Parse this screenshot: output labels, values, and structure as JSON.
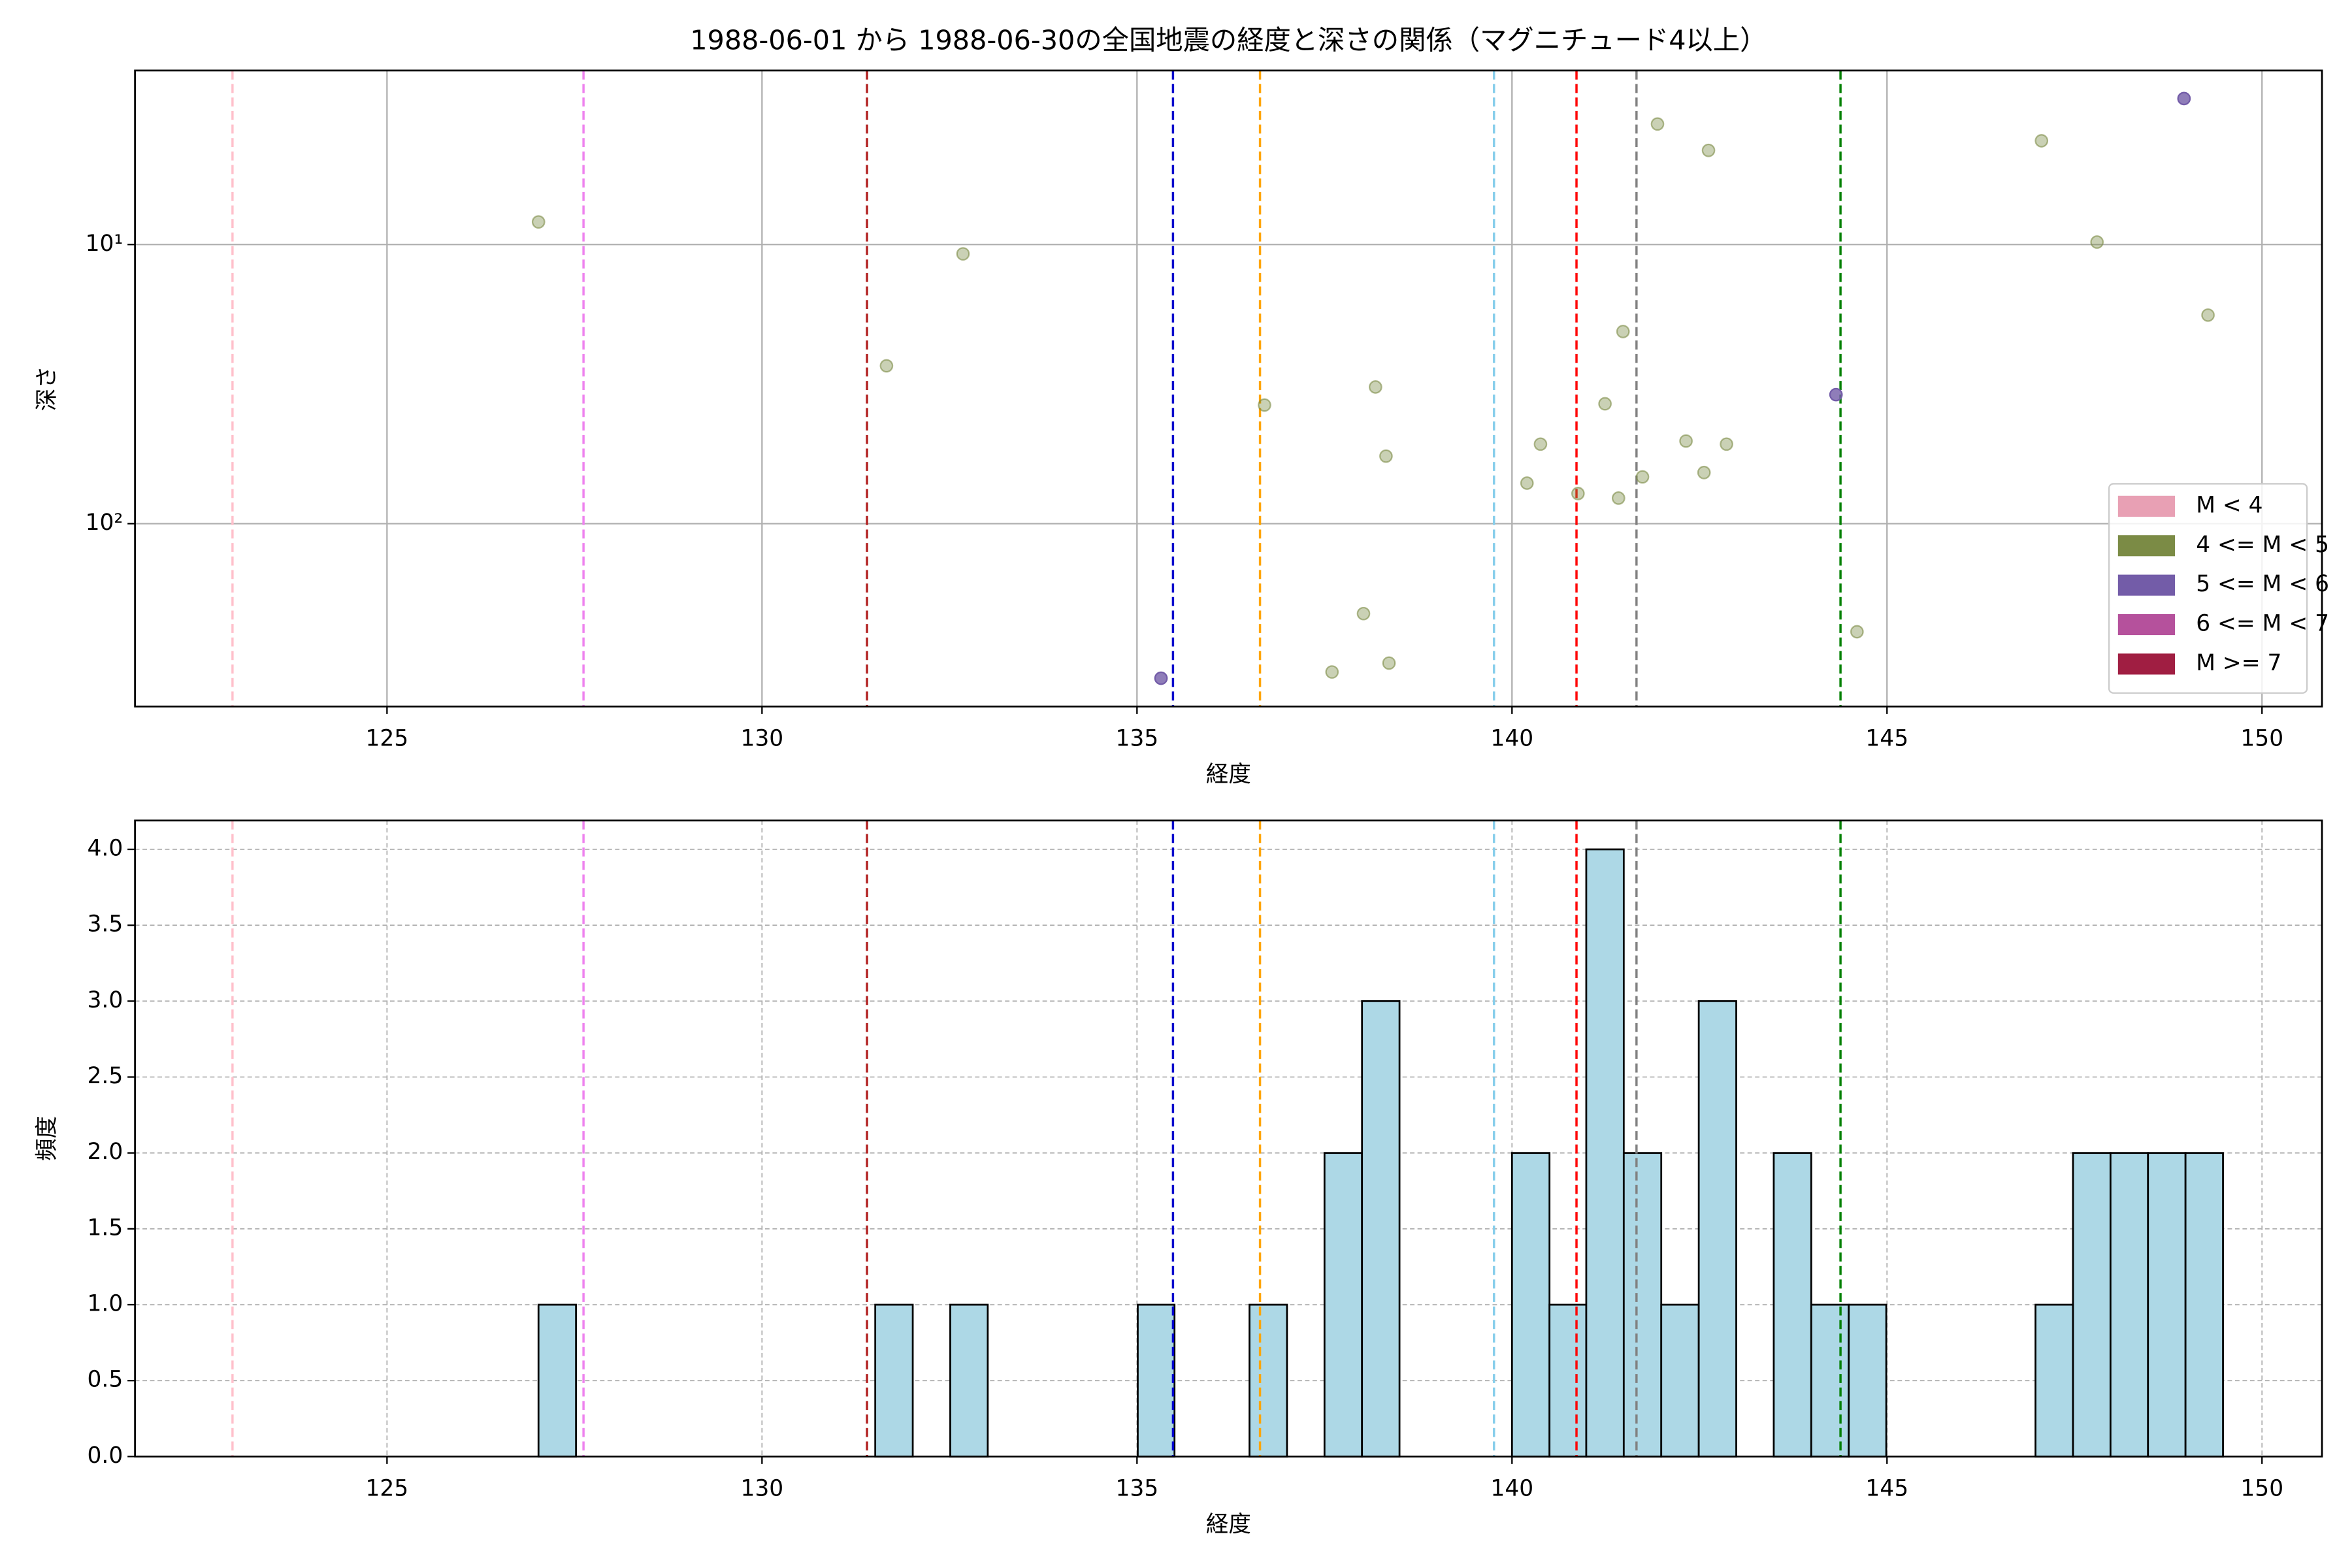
{
  "chart_data": [
    {
      "type": "scatter",
      "title": "1988-06-01 から 1988-06-30の全国地震の経度と深さの関係（マグニチュード4以上）",
      "xlabel": "経度",
      "ylabel": "深さ",
      "xlim": [
        121.64,
        150.8
      ],
      "xticks": [
        125,
        130,
        135,
        140,
        145,
        150
      ],
      "yscale": "log",
      "ylim": [
        452,
        2.38
      ],
      "yticks": [
        {
          "value": 10,
          "label": "10¹"
        },
        {
          "value": 100,
          "label": "10²"
        }
      ],
      "grid": true,
      "legend": "lower right",
      "series": [
        {
          "name": "M < 4",
          "color": "#e8a0b4",
          "alpha": 0.8,
          "x": [],
          "values": []
        },
        {
          "name": "4 <= M < 5",
          "color": "#7b8b45",
          "alpha": 0.4,
          "x": [
            127.02,
            132.68,
            131.66,
            136.7,
            138.18,
            138.32,
            138.02,
            137.6,
            138.36,
            140.2,
            140.38,
            140.88,
            141.24,
            141.48,
            141.42,
            141.74,
            141.94,
            142.32,
            142.56,
            142.62,
            142.86,
            144.6,
            147.06,
            147.8,
            149.28
          ],
          "values": [
            8.3,
            10.8,
            27.2,
            37.6,
            32.4,
            57.3,
            210,
            340,
            316,
            71.6,
            51.9,
            78,
            37.2,
            20.5,
            81,
            68,
            3.7,
            50.6,
            65.6,
            4.6,
            51.9,
            244,
            4.25,
            9.8,
            17.9
          ]
        },
        {
          "name": "5 <= M < 6",
          "color": "#735ca8",
          "alpha": 0.8,
          "x": [
            135.32,
            144.32,
            148.96
          ],
          "values": [
            358,
            34.5,
            3.0
          ]
        },
        {
          "name": "6 <= M < 7",
          "color": "#b5519c",
          "alpha": 0.8,
          "x": [],
          "values": []
        },
        {
          "name": "M >= 7",
          "color": "#a01e42",
          "alpha": 0.8,
          "x": [],
          "values": []
        }
      ],
      "vlines": [
        {
          "x": 122.94,
          "color": "#ffc0cb"
        },
        {
          "x": 127.62,
          "color": "#ee82ee"
        },
        {
          "x": 131.4,
          "color": "#b22222"
        },
        {
          "x": 135.48,
          "color": "#0000cd"
        },
        {
          "x": 136.64,
          "color": "#ffa500"
        },
        {
          "x": 139.76,
          "color": "#87ceeb"
        },
        {
          "x": 140.86,
          "color": "#ff0000"
        },
        {
          "x": 141.66,
          "color": "#808080"
        },
        {
          "x": 144.38,
          "color": "#008000"
        }
      ]
    },
    {
      "type": "histogram",
      "xlabel": "経度",
      "ylabel": "頻度",
      "xlim": [
        121.64,
        150.8
      ],
      "xticks": [
        125,
        130,
        135,
        140,
        145,
        150
      ],
      "ylim": [
        0,
        4.19
      ],
      "yticks": [
        {
          "value": 0,
          "label": "0.0"
        },
        {
          "value": 0.5,
          "label": "0.5"
        },
        {
          "value": 1,
          "label": "1.0"
        },
        {
          "value": 1.5,
          "label": "1.5"
        },
        {
          "value": 2,
          "label": "2.0"
        },
        {
          "value": 2.5,
          "label": "2.5"
        },
        {
          "value": 3,
          "label": "3.0"
        },
        {
          "value": 3.5,
          "label": "3.5"
        },
        {
          "value": 4,
          "label": "4.0"
        }
      ],
      "grid": true,
      "color": "#add8e6",
      "edgecolor": "#000000",
      "bins": [
        127.02,
        127.52,
        128.02,
        128.52,
        129.02,
        129.52,
        130.01,
        130.51,
        131.01,
        131.51,
        132.01,
        132.51,
        133.01,
        133.51,
        134.01,
        134.51,
        135.01,
        135.5,
        136.0,
        136.5,
        137.0,
        137.5,
        138.0,
        138.5,
        139.0,
        139.5,
        140.0,
        140.5,
        140.99,
        141.49,
        141.99,
        142.49,
        142.99,
        143.49,
        143.99,
        144.49,
        144.99,
        145.49,
        145.99,
        146.48,
        146.98,
        147.48,
        147.98,
        148.48,
        148.98,
        149.48
      ],
      "values": [
        1,
        0,
        0,
        0,
        0,
        0,
        0,
        0,
        0,
        1,
        0,
        1,
        0,
        0,
        0,
        0,
        1,
        0,
        0,
        1,
        0,
        2,
        3,
        0,
        0,
        0,
        2,
        1,
        4,
        2,
        1,
        3,
        0,
        2,
        1,
        1,
        0,
        0,
        0,
        0,
        1,
        2,
        2,
        2,
        2
      ],
      "vlines": [
        {
          "x": 122.94,
          "color": "#ffc0cb"
        },
        {
          "x": 127.62,
          "color": "#ee82ee"
        },
        {
          "x": 131.4,
          "color": "#b22222"
        },
        {
          "x": 135.48,
          "color": "#0000cd"
        },
        {
          "x": 136.64,
          "color": "#ffa500"
        },
        {
          "x": 139.76,
          "color": "#87ceeb"
        },
        {
          "x": 140.86,
          "color": "#ff0000"
        },
        {
          "x": 141.66,
          "color": "#808080"
        },
        {
          "x": 144.38,
          "color": "#008000"
        }
      ]
    }
  ]
}
